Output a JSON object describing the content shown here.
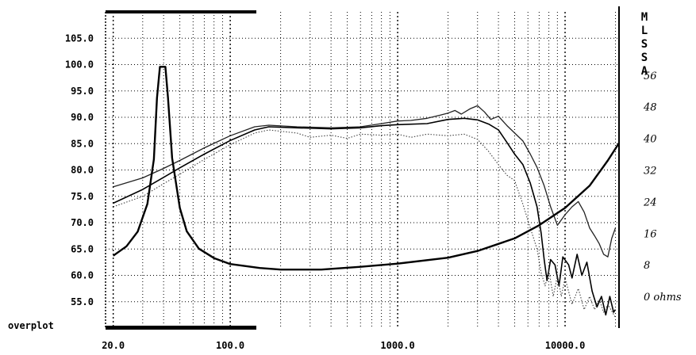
{
  "chart_data": {
    "type": "line",
    "x_scale": "log",
    "xlim": [
      18,
      21000
    ],
    "ylim_left": [
      50,
      110
    ],
    "ylim_right_ohms": [
      -8,
      72
    ],
    "grid": true,
    "x_ticks": [
      {
        "value": 20,
        "label": "20.0"
      },
      {
        "value": 100,
        "label": "100.0"
      },
      {
        "value": 1000,
        "label": "1000.0"
      },
      {
        "value": 10000,
        "label": "10000.0"
      }
    ],
    "y_ticks_left": [
      {
        "value": 105,
        "label": "105.0"
      },
      {
        "value": 100,
        "label": "100.0"
      },
      {
        "value": 95,
        "label": "95.0"
      },
      {
        "value": 90,
        "label": "90.0"
      },
      {
        "value": 85,
        "label": "85.0"
      },
      {
        "value": 80,
        "label": "80.0"
      },
      {
        "value": 75,
        "label": "75.0"
      },
      {
        "value": 70,
        "label": "70.0"
      },
      {
        "value": 65,
        "label": "65.0"
      },
      {
        "value": 60,
        "label": "60.0"
      },
      {
        "value": 55,
        "label": "55.0"
      }
    ],
    "y_ticks_right": [
      {
        "value": 56,
        "label": "56"
      },
      {
        "value": 48,
        "label": "48"
      },
      {
        "value": 40,
        "label": "40"
      },
      {
        "value": 32,
        "label": "32"
      },
      {
        "value": 24,
        "label": "24"
      },
      {
        "value": 16,
        "label": "16"
      },
      {
        "value": 8,
        "label": "8"
      },
      {
        "value": 0,
        "label": "0 ohms"
      }
    ],
    "brand_letters": [
      "M",
      "L",
      "S",
      "S",
      "A"
    ],
    "overplot_label": "overplot",
    "series": [
      {
        "style": "thin-solid",
        "axis": "left",
        "points": [
          [
            20,
            76.8
          ],
          [
            30,
            78.5
          ],
          [
            40,
            80.3
          ],
          [
            50,
            81.8
          ],
          [
            70,
            84.2
          ],
          [
            100,
            86.5
          ],
          [
            140,
            88.2
          ],
          [
            170,
            88.5
          ],
          [
            250,
            88.2
          ],
          [
            400,
            88.0
          ],
          [
            600,
            88.2
          ],
          [
            800,
            88.8
          ],
          [
            1000,
            89.3
          ],
          [
            1200,
            89.4
          ],
          [
            1500,
            89.8
          ],
          [
            1800,
            90.4
          ],
          [
            2000,
            90.8
          ],
          [
            2200,
            91.3
          ],
          [
            2400,
            90.6
          ],
          [
            2700,
            91.6
          ],
          [
            3000,
            92.2
          ],
          [
            3300,
            91.0
          ],
          [
            3600,
            89.6
          ],
          [
            4000,
            90.2
          ],
          [
            4500,
            88.4
          ],
          [
            5000,
            87.0
          ],
          [
            5600,
            85.5
          ],
          [
            6200,
            83.0
          ],
          [
            6800,
            80.5
          ],
          [
            7500,
            77.0
          ],
          [
            8200,
            73.0
          ],
          [
            9000,
            69.5
          ],
          [
            10000,
            71.5
          ],
          [
            11000,
            73.0
          ],
          [
            12000,
            74.0
          ],
          [
            13000,
            72.0
          ],
          [
            14000,
            69.0
          ],
          [
            15000,
            67.5
          ],
          [
            16000,
            66.0
          ],
          [
            17000,
            64.0
          ],
          [
            18000,
            63.5
          ],
          [
            19000,
            67.0
          ],
          [
            20000,
            69.0
          ]
        ]
      },
      {
        "style": "medium-solid",
        "axis": "left",
        "points": [
          [
            20,
            73.7
          ],
          [
            30,
            76.3
          ],
          [
            40,
            78.6
          ],
          [
            50,
            80.4
          ],
          [
            70,
            83.0
          ],
          [
            100,
            85.6
          ],
          [
            140,
            87.6
          ],
          [
            170,
            88.2
          ],
          [
            250,
            88.0
          ],
          [
            400,
            87.8
          ],
          [
            600,
            88.0
          ],
          [
            800,
            88.4
          ],
          [
            1000,
            88.6
          ],
          [
            1500,
            88.8
          ],
          [
            2000,
            89.6
          ],
          [
            2500,
            89.8
          ],
          [
            3000,
            89.5
          ],
          [
            3500,
            88.7
          ],
          [
            4000,
            87.6
          ],
          [
            4500,
            85.2
          ],
          [
            5000,
            83.0
          ],
          [
            5600,
            81.0
          ],
          [
            6200,
            77.5
          ],
          [
            6800,
            73.0
          ],
          [
            7200,
            68.0
          ],
          [
            7500,
            63.0
          ],
          [
            7800,
            59.0
          ],
          [
            8200,
            63.0
          ],
          [
            8700,
            62.0
          ],
          [
            9200,
            58.0
          ],
          [
            9700,
            63.5
          ],
          [
            10500,
            62.0
          ],
          [
            11000,
            59.5
          ],
          [
            11800,
            64.0
          ],
          [
            12600,
            60.0
          ],
          [
            13500,
            62.5
          ],
          [
            14500,
            57.0
          ],
          [
            15500,
            54.0
          ],
          [
            16500,
            56.0
          ],
          [
            17500,
            52.5
          ],
          [
            18500,
            56.0
          ],
          [
            19500,
            53.0
          ],
          [
            20000,
            53.5
          ]
        ]
      },
      {
        "style": "dotted",
        "axis": "left",
        "points": [
          [
            20,
            73.0
          ],
          [
            30,
            75.0
          ],
          [
            40,
            77.4
          ],
          [
            50,
            79.2
          ],
          [
            70,
            82.0
          ],
          [
            100,
            84.8
          ],
          [
            140,
            87.0
          ],
          [
            170,
            87.6
          ],
          [
            250,
            87.0
          ],
          [
            300,
            86.2
          ],
          [
            400,
            86.6
          ],
          [
            500,
            86.0
          ],
          [
            600,
            86.8
          ],
          [
            800,
            86.6
          ],
          [
            1000,
            86.8
          ],
          [
            1200,
            86.2
          ],
          [
            1500,
            86.8
          ],
          [
            2000,
            86.5
          ],
          [
            2500,
            86.8
          ],
          [
            3000,
            85.8
          ],
          [
            3500,
            83.5
          ],
          [
            4000,
            81.0
          ],
          [
            4500,
            79.0
          ],
          [
            5000,
            78.0
          ],
          [
            5600,
            73.5
          ],
          [
            6200,
            69.0
          ],
          [
            6800,
            65.0
          ],
          [
            7200,
            60.5
          ],
          [
            7600,
            58.0
          ],
          [
            8000,
            61.0
          ],
          [
            8500,
            56.0
          ],
          [
            9000,
            60.0
          ],
          [
            9500,
            56.0
          ],
          [
            10000,
            59.5
          ],
          [
            11000,
            54.5
          ],
          [
            12000,
            57.5
          ],
          [
            13000,
            53.5
          ],
          [
            14000,
            56.0
          ],
          [
            15000,
            53.5
          ],
          [
            16000,
            55.5
          ],
          [
            17000,
            53.0
          ],
          [
            18000,
            54.5
          ],
          [
            20000,
            52.0
          ]
        ]
      },
      {
        "style": "thick-solid",
        "axis": "right",
        "points": [
          [
            20,
            10.3
          ],
          [
            24,
            12.7
          ],
          [
            28,
            16.4
          ],
          [
            32,
            23.4
          ],
          [
            35,
            34.7
          ],
          [
            36.5,
            50.2
          ],
          [
            38,
            58.1
          ],
          [
            41,
            58.1
          ],
          [
            42.5,
            50.2
          ],
          [
            45,
            35.0
          ],
          [
            50,
            22.4
          ],
          [
            55,
            16.5
          ],
          [
            65,
            12.1
          ],
          [
            80,
            9.7
          ],
          [
            100,
            8.2
          ],
          [
            150,
            7.2
          ],
          [
            200,
            6.8
          ],
          [
            350,
            6.8
          ],
          [
            600,
            7.5
          ],
          [
            1000,
            8.3
          ],
          [
            2000,
            9.8
          ],
          [
            3000,
            11.5
          ],
          [
            5000,
            14.7
          ],
          [
            7000,
            18.0
          ],
          [
            10000,
            22.4
          ],
          [
            14000,
            28.0
          ],
          [
            18000,
            34.4
          ],
          [
            21000,
            38.8
          ]
        ]
      }
    ]
  }
}
